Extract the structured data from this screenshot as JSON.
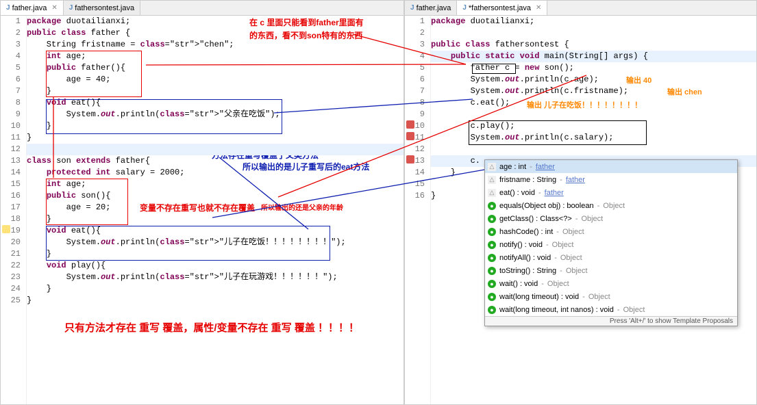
{
  "left": {
    "tabs": [
      {
        "label": "father.java",
        "active": true
      },
      {
        "label": "fathersontest.java",
        "active": false
      }
    ],
    "lines": [
      "package duotailianxi;",
      "public class father {",
      "    String fristname = \"chen\";",
      "    int age;",
      "    public father(){",
      "        age = 40;",
      "    }",
      "    void eat(){",
      "        System.out.println(\"父亲在吃饭\");",
      "    }",
      "}",
      "",
      "class son extends father{",
      "    protected int salary = 2000;",
      "    int age;",
      "    public son(){",
      "        age = 20;",
      "    }",
      "    void eat(){",
      "        System.out.println(\"儿子在吃饭！！！！！！！！\");",
      "    }",
      "    void play(){",
      "        System.out.println(\"儿子在玩游戏！！！！！！\");",
      "    }",
      "}"
    ],
    "annot_top1": "在 c 里面只能看到father里面有",
    "annot_top2": "的东西，看不到son特有的东西",
    "annot_mid1": "方法存在重写覆盖了父类方法",
    "annot_mid2": "所以输出的是儿子重写后的eat方法",
    "annot_var": "变量不存在重写也就不存在覆盖",
    "annot_var2": "所以输出的还是父亲的年龄",
    "annot_big": "只有方法才存在 重写 覆盖，属性/变量不存在 重写 覆盖 ！！！！"
  },
  "right": {
    "tabs": [
      {
        "label": "father.java",
        "active": false
      },
      {
        "label": "*fathersontest.java",
        "active": true
      }
    ],
    "lines": [
      "package duotailianxi;",
      "",
      "public class fathersontest {",
      "    public static void main(String[] args) {",
      "        father c = new son();",
      "        System.out.println(c.age);",
      "        System.out.println(c.fristname);",
      "        c.eat();",
      "",
      "        c.play();",
      "        System.out.println(c.salary);",
      "",
      "        c. ",
      "    }",
      "",
      "}"
    ],
    "annot_out40": "输出 40",
    "annot_outchen": "输出 chen",
    "annot_outeat": "输出  儿子在吃饭！！！！！！！！",
    "autocomplete": {
      "items": [
        {
          "kind": "tri",
          "label": "age : int",
          "src": "father",
          "link": true
        },
        {
          "kind": "tri",
          "label": "fristname : String",
          "src": "father",
          "link": true
        },
        {
          "kind": "tri",
          "label": "eat() : void",
          "src": "father",
          "link": true
        },
        {
          "kind": "grn",
          "label": "equals(Object obj) : boolean",
          "src": "Object"
        },
        {
          "kind": "grn",
          "label": "getClass() : Class<?>",
          "src": "Object"
        },
        {
          "kind": "grn",
          "label": "hashCode() : int",
          "src": "Object"
        },
        {
          "kind": "grn",
          "label": "notify() : void",
          "src": "Object"
        },
        {
          "kind": "grn",
          "label": "notifyAll() : void",
          "src": "Object"
        },
        {
          "kind": "grn",
          "label": "toString() : String",
          "src": "Object"
        },
        {
          "kind": "grn",
          "label": "wait() : void",
          "src": "Object"
        },
        {
          "kind": "grn",
          "label": "wait(long timeout) : void",
          "src": "Object"
        },
        {
          "kind": "grn",
          "label": "wait(long timeout, int nanos) : void",
          "src": "Object"
        }
      ],
      "hint": "Press 'Alt+/' to show Template Proposals"
    }
  }
}
